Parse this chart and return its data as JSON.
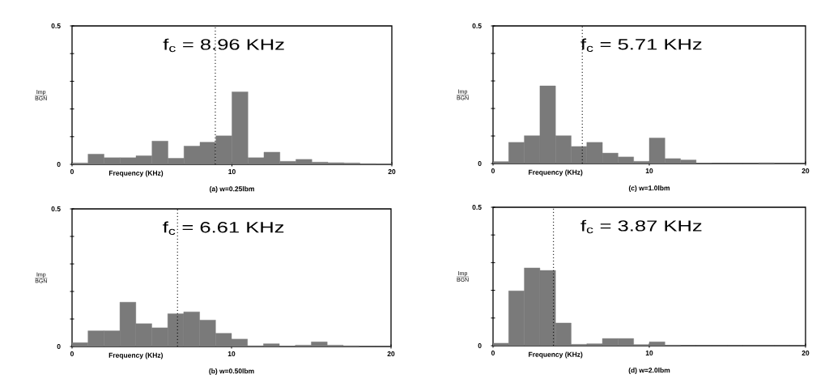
{
  "chart_data": [
    {
      "type": "histogram",
      "bins": [
        0,
        1,
        2,
        3,
        4,
        5,
        6,
        7,
        8,
        9,
        10,
        11,
        12,
        13,
        14,
        15,
        16,
        17,
        18,
        19,
        20
      ],
      "values": [
        0.005,
        0.037,
        0.024,
        0.024,
        0.031,
        0.084,
        0.022,
        0.066,
        0.08,
        0.103,
        0.262,
        0.024,
        0.044,
        0.011,
        0.018,
        0.008,
        0.006,
        0.005,
        0.003,
        0.002
      ],
      "color": "#7a7a7a",
      "xlim": [
        0,
        20
      ],
      "ylim": [
        0,
        0.5
      ],
      "xticks": [
        0,
        10,
        20
      ],
      "yticks": [
        0,
        {
          "value": 0.1,
          "label": null
        },
        {
          "value": 0.2,
          "label": null
        },
        {
          "value": 0.3,
          "label": null
        },
        {
          "value": 0.4,
          "label": null
        },
        0.5
      ],
      "xlabel": "Frequency (KHz)",
      "ylabel": "\\frac{\\mathrm{Imp}}{\\mathrm{BGN}}",
      "ref_lines": [
        {
          "axis": "x",
          "value": 8.96,
          "label": "f$_{c}$ = 8.96 KHz",
          "line_style": "dotted"
        }
      ],
      "annotations": [
        "(a) w=0.25lbm"
      ]
    },
    {
      "type": "histogram",
      "bins": [
        0,
        1,
        2,
        3,
        4,
        5,
        6,
        7,
        8,
        9,
        10,
        11,
        12,
        13,
        14,
        15,
        16,
        17,
        18,
        19,
        20
      ],
      "values": [
        0.007,
        0.077,
        0.101,
        0.282,
        0.101,
        0.062,
        0.077,
        0.038,
        0.024,
        0.008,
        0.093,
        0.018,
        0.013,
        0.001,
        0,
        0,
        0,
        0.003,
        0,
        0
      ],
      "color": "#7a7a7a",
      "xlim": [
        0,
        20
      ],
      "ylim": [
        0,
        0.5
      ],
      "xticks": [
        0,
        10,
        20
      ],
      "yticks": [
        0,
        {
          "value": 0.1,
          "label": null
        },
        {
          "value": 0.2,
          "label": null
        },
        {
          "value": 0.3,
          "label": null
        },
        {
          "value": 0.4,
          "label": null
        },
        0.5
      ],
      "xlabel": "Frequency (KHz)",
      "ylabel": "\\frac{\\mathrm{Imp}}{\\mathrm{BGN}}",
      "ref_lines": [
        {
          "axis": "x",
          "value": 5.71,
          "label": "f$_{c}$ = 5.71 KHz",
          "line_style": "dotted"
        }
      ],
      "annotations": [
        "(c) w=1.0lbm"
      ]
    },
    {
      "type": "histogram",
      "bins": [
        0,
        1,
        2,
        3,
        4,
        5,
        6,
        7,
        8,
        9,
        10,
        11,
        12,
        13,
        14,
        15,
        16,
        17,
        18,
        19,
        20
      ],
      "values": [
        0.014,
        0.057,
        0.057,
        0.161,
        0.083,
        0.068,
        0.119,
        0.126,
        0.096,
        0.048,
        0.027,
        0.003,
        0.01,
        0.002,
        0.005,
        0.017,
        0.005,
        0.003,
        0,
        0
      ],
      "color": "#7a7a7a",
      "xlim": [
        0,
        20
      ],
      "ylim": [
        0,
        0.5
      ],
      "xticks": [
        0,
        10,
        20
      ],
      "yticks": [
        0,
        {
          "value": 0.1,
          "label": null
        },
        {
          "value": 0.2,
          "label": null
        },
        {
          "value": 0.3,
          "label": null
        },
        {
          "value": 0.4,
          "label": null
        },
        0.5
      ],
      "xlabel": "Frequency (KHz)",
      "ylabel": "\\frac{\\mathrm{Imp}}{\\mathrm{BGN}}",
      "ref_lines": [
        {
          "axis": "x",
          "value": 6.61,
          "label": "f$_{c}$ = 6.61 KHz",
          "line_style": "dotted"
        }
      ],
      "annotations": [
        "(b) w=0.50lbm"
      ]
    },
    {
      "type": "histogram",
      "bins": [
        0,
        1,
        2,
        3,
        4,
        5,
        6,
        7,
        8,
        9,
        10,
        11,
        12,
        13,
        14,
        15,
        16,
        17,
        18,
        19,
        20
      ],
      "values": [
        0.009,
        0.198,
        0.281,
        0.272,
        0.082,
        0.005,
        0.007,
        0.026,
        0.026,
        0.004,
        0.014,
        0.002,
        0,
        0,
        0,
        0,
        0,
        0,
        0,
        0
      ],
      "color": "#7a7a7a",
      "xlim": [
        0,
        20
      ],
      "ylim": [
        0,
        0.5
      ],
      "xticks": [
        0,
        10,
        20
      ],
      "yticks": [
        0,
        {
          "value": 0.1,
          "label": null
        },
        {
          "value": 0.2,
          "label": null
        },
        {
          "value": 0.3,
          "label": null
        },
        {
          "value": 0.4,
          "label": null
        },
        0.5
      ],
      "xlabel": "Frequency (KHz)",
      "ylabel": "\\frac{\\mathrm{Imp}}{\\mathrm{BGN}}",
      "ref_lines": [
        {
          "axis": "x",
          "value": 3.87,
          "label": "f$_{c}$ = 3.87 KHz",
          "line_style": "dotted"
        }
      ],
      "annotations": [
        "(d) w=2.0lbm"
      ]
    }
  ]
}
